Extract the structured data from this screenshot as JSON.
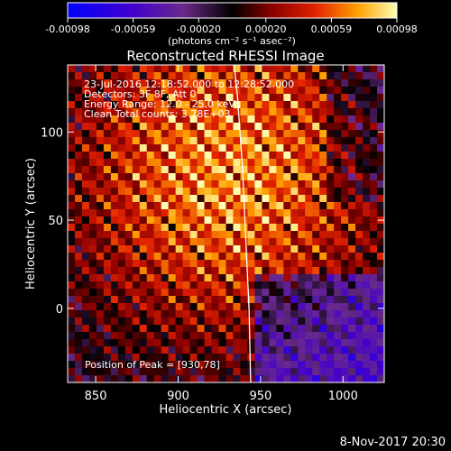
{
  "chart_data": {
    "type": "heatmap",
    "title": "Reconstructed RHESSI Image",
    "xlabel": "Heliocentric X (arcsec)",
    "ylabel": "Heliocentric Y (arcsec)",
    "xlim": [
      833,
      1025
    ],
    "ylim": [
      -42,
      138
    ],
    "x_ticks": [
      850,
      900,
      950,
      1000
    ],
    "y_ticks": [
      0,
      50,
      100
    ],
    "colorbar": {
      "range": [
        -0.00098,
        0.00098
      ],
      "tick_values": [
        -0.00098,
        -0.00059,
        -0.0002,
        0.0002,
        0.00059,
        0.00098
      ],
      "tick_labels": [
        "-0.00098",
        "-0.00059",
        "-0.00020",
        "0.00020",
        "0.00059",
        "0.00098"
      ],
      "label": "(photons cm⁻² s⁻¹ asec⁻²)"
    },
    "annotations": [
      "23-Jul-2016 12:18:52.000 to 12:28:52.000",
      "Detectors: 3F 8F, Att 0",
      "Energy Range: 12.0 - 25.0 keV",
      "Clean     Total counts: 3.78E+03"
    ],
    "peak_label": "Position of Peak = [930,78]",
    "peak_position": [
      930,
      78
    ],
    "limb_curve": [
      [
        944,
        -42
      ],
      [
        943,
        0
      ],
      [
        941,
        40
      ],
      [
        939,
        80
      ],
      [
        936,
        120
      ],
      [
        934,
        138
      ]
    ]
  },
  "footer": {
    "timestamp": "8-Nov-2017 20:30"
  }
}
